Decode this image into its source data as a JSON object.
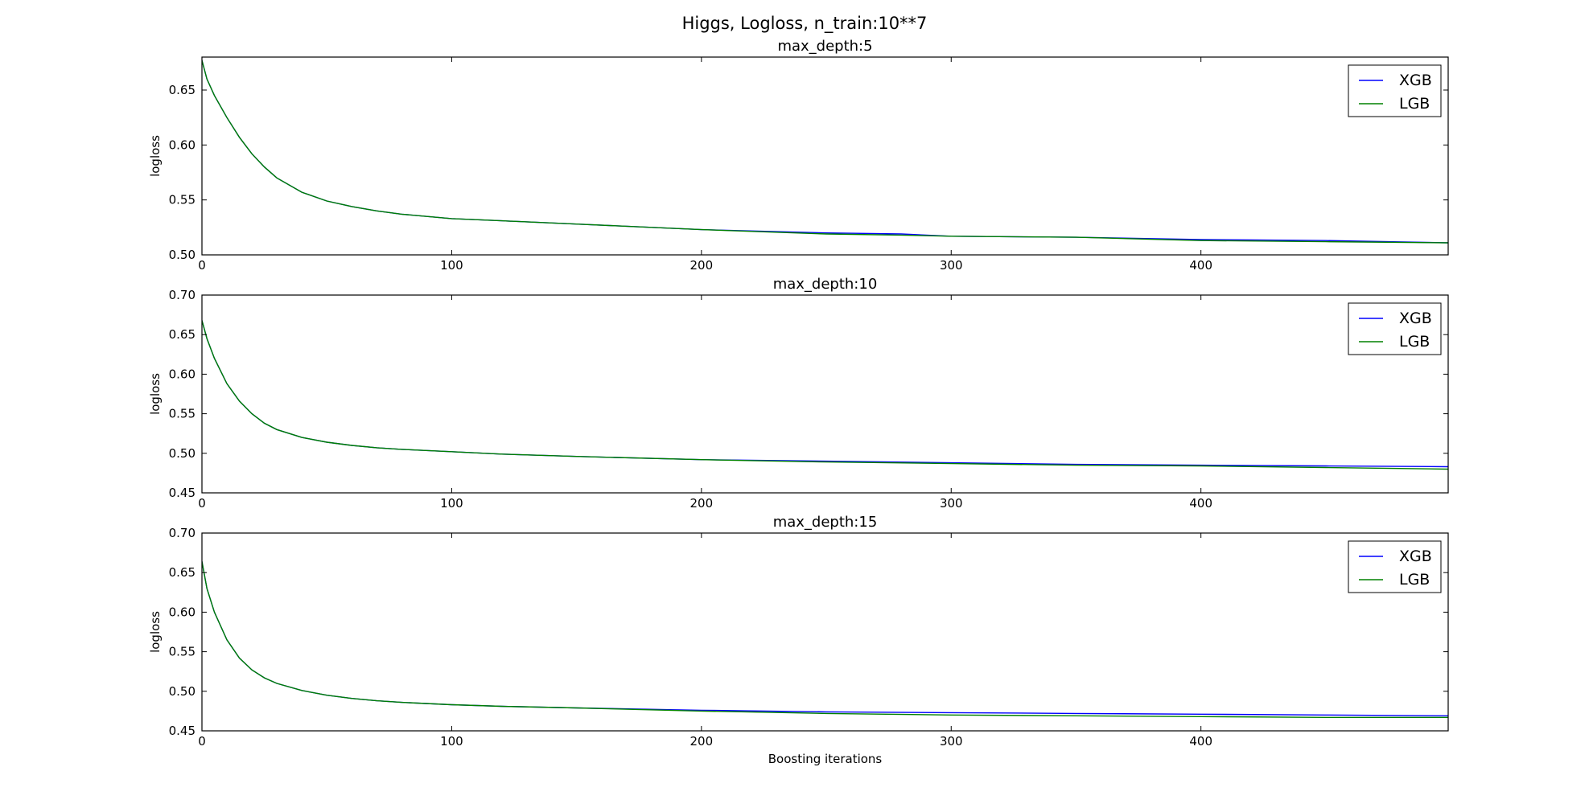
{
  "figure": {
    "suptitle": "Higgs, Logloss, n_train:10**7"
  },
  "colors": {
    "XGB": "#0000ff",
    "LGB": "#008000"
  },
  "chart_data": [
    {
      "type": "line",
      "title": "max_depth:5",
      "xlabel": "",
      "ylabel": "logloss",
      "xlim": [
        0,
        499
      ],
      "ylim": [
        0.5,
        0.68
      ],
      "xticks": [
        0,
        100,
        200,
        300,
        400
      ],
      "yticks": [
        0.5,
        0.55,
        0.6,
        0.65
      ],
      "grid": false,
      "legend_position": "top-right",
      "x": [
        0,
        2,
        5,
        10,
        15,
        20,
        25,
        30,
        40,
        50,
        60,
        70,
        80,
        100,
        120,
        150,
        200,
        250,
        280,
        300,
        350,
        400,
        450,
        499
      ],
      "series": [
        {
          "name": "XGB",
          "values": [
            0.677,
            0.66,
            0.645,
            0.625,
            0.607,
            0.592,
            0.58,
            0.57,
            0.557,
            0.549,
            0.544,
            0.54,
            0.537,
            0.533,
            0.531,
            0.528,
            0.523,
            0.52,
            0.519,
            0.517,
            0.516,
            0.514,
            0.513,
            0.511
          ]
        },
        {
          "name": "LGB",
          "values": [
            0.677,
            0.66,
            0.645,
            0.625,
            0.607,
            0.592,
            0.58,
            0.57,
            0.557,
            0.549,
            0.544,
            0.54,
            0.537,
            0.533,
            0.531,
            0.528,
            0.523,
            0.519,
            0.518,
            0.517,
            0.516,
            0.513,
            0.512,
            0.511
          ]
        }
      ]
    },
    {
      "type": "line",
      "title": "max_depth:10",
      "xlabel": "",
      "ylabel": "logloss",
      "xlim": [
        0,
        499
      ],
      "ylim": [
        0.45,
        0.7
      ],
      "xticks": [
        0,
        100,
        200,
        300,
        400
      ],
      "yticks": [
        0.45,
        0.5,
        0.55,
        0.6,
        0.65,
        0.7
      ],
      "grid": false,
      "legend_position": "top-right",
      "x": [
        0,
        2,
        5,
        10,
        15,
        20,
        25,
        30,
        40,
        50,
        60,
        70,
        80,
        100,
        120,
        150,
        200,
        250,
        300,
        350,
        400,
        450,
        499
      ],
      "series": [
        {
          "name": "XGB",
          "values": [
            0.668,
            0.645,
            0.62,
            0.588,
            0.566,
            0.55,
            0.538,
            0.53,
            0.52,
            0.514,
            0.51,
            0.507,
            0.505,
            0.502,
            0.499,
            0.496,
            0.492,
            0.49,
            0.488,
            0.486,
            0.485,
            0.484,
            0.483
          ]
        },
        {
          "name": "LGB",
          "values": [
            0.668,
            0.645,
            0.62,
            0.588,
            0.566,
            0.55,
            0.538,
            0.53,
            0.52,
            0.514,
            0.51,
            0.507,
            0.505,
            0.502,
            0.499,
            0.496,
            0.492,
            0.489,
            0.487,
            0.485,
            0.484,
            0.482,
            0.48
          ]
        }
      ]
    },
    {
      "type": "line",
      "title": "max_depth:15",
      "xlabel": "Boosting iterations",
      "ylabel": "logloss",
      "xlim": [
        0,
        499
      ],
      "ylim": [
        0.45,
        0.7
      ],
      "xticks": [
        0,
        100,
        200,
        300,
        400
      ],
      "yticks": [
        0.45,
        0.5,
        0.55,
        0.6,
        0.65,
        0.7
      ],
      "grid": false,
      "legend_position": "top-right",
      "x": [
        0,
        2,
        5,
        10,
        15,
        20,
        25,
        30,
        40,
        50,
        60,
        70,
        80,
        100,
        120,
        150,
        200,
        250,
        300,
        350,
        400,
        450,
        499
      ],
      "series": [
        {
          "name": "XGB",
          "values": [
            0.664,
            0.63,
            0.6,
            0.565,
            0.542,
            0.527,
            0.517,
            0.51,
            0.501,
            0.495,
            0.491,
            0.488,
            0.486,
            0.483,
            0.481,
            0.479,
            0.476,
            0.474,
            0.473,
            0.472,
            0.471,
            0.47,
            0.469
          ]
        },
        {
          "name": "LGB",
          "values": [
            0.664,
            0.63,
            0.6,
            0.565,
            0.542,
            0.527,
            0.517,
            0.51,
            0.501,
            0.495,
            0.491,
            0.488,
            0.486,
            0.483,
            0.481,
            0.479,
            0.475,
            0.472,
            0.47,
            0.469,
            0.468,
            0.467,
            0.467
          ]
        }
      ]
    }
  ]
}
